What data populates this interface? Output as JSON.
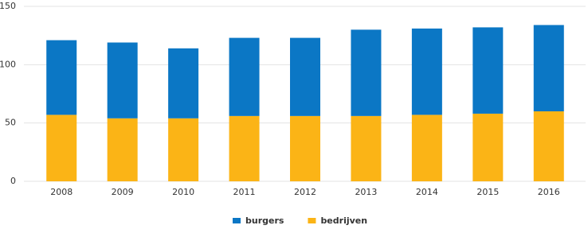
{
  "chart_data": {
    "type": "stacked-bar",
    "categories": [
      "2008",
      "2009",
      "2010",
      "2011",
      "2012",
      "2013",
      "2014",
      "2015",
      "2016"
    ],
    "series": [
      {
        "name": "bedrijven",
        "color": "#fbb416",
        "values": [
          57,
          54,
          54,
          56,
          56,
          56,
          57,
          58,
          60
        ]
      },
      {
        "name": "burgers",
        "color": "#0b77c5",
        "values": [
          64,
          65,
          60,
          67,
          67,
          74,
          74,
          74,
          74
        ]
      }
    ],
    "legend_order": [
      1,
      0
    ],
    "legend": "bottom",
    "ylim": [
      0,
      150
    ],
    "yticks": [
      0,
      50,
      100,
      150
    ],
    "grid": true
  }
}
